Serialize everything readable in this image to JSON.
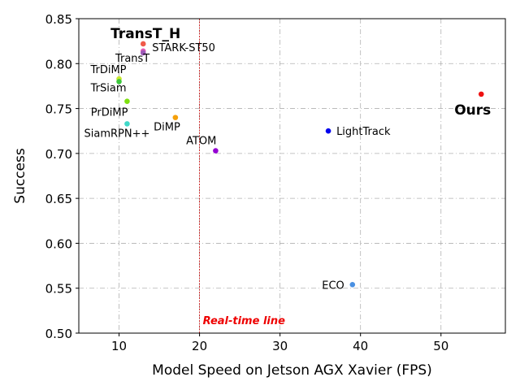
{
  "chart_data": {
    "type": "scatter",
    "xlabel": "Model Speed on Jetson AGX Xavier (FPS)",
    "ylabel": "Success",
    "xlim": [
      5,
      58
    ],
    "ylim": [
      0.5,
      0.85
    ],
    "xticks": [
      10,
      20,
      30,
      40,
      50
    ],
    "xtick_labels": [
      "10",
      "20",
      "30",
      "40",
      "50"
    ],
    "yticks": [
      0.5,
      0.55,
      0.6,
      0.65,
      0.7,
      0.75,
      0.8,
      0.85
    ],
    "ytick_labels": [
      "0.50",
      "0.55",
      "0.60",
      "0.65",
      "0.70",
      "0.75",
      "0.80",
      "0.85"
    ],
    "grid": true,
    "points": [
      {
        "label": "TransT_H",
        "x": 13,
        "y": 0.822,
        "color": "#f05a4a",
        "label_pos": "above-left",
        "bold": true
      },
      {
        "label": "STARK-ST50",
        "x": 13,
        "y": 0.814,
        "color": "#e45bb8",
        "label_pos": "right",
        "bold": false
      },
      {
        "label": "TransT",
        "x": 13,
        "y": 0.812,
        "color": "#9b59b6",
        "label_pos": "below-left",
        "bold": false
      },
      {
        "label": "TrDiMP",
        "x": 10,
        "y": 0.783,
        "color": "#c8e830",
        "label_pos": "above-left",
        "bold": false
      },
      {
        "label": "TrSiam",
        "x": 10,
        "y": 0.78,
        "color": "#3cc83c",
        "label_pos": "below-left",
        "bold": false
      },
      {
        "label": "PrDiMP",
        "x": 11,
        "y": 0.758,
        "color": "#7ee00f",
        "label_pos": "below-left",
        "bold": false
      },
      {
        "label": "SiamRPN++",
        "x": 11,
        "y": 0.733,
        "color": "#40d8c8",
        "label_pos": "below-left",
        "bold": false
      },
      {
        "label": "DiMP",
        "x": 17,
        "y": 0.74,
        "color": "#f5a00a",
        "label_pos": "below-left",
        "bold": false
      },
      {
        "label": "ATOM",
        "x": 22,
        "y": 0.703,
        "color": "#9400d3",
        "label_pos": "above-left",
        "bold": false
      },
      {
        "label": "LightTrack",
        "x": 36,
        "y": 0.725,
        "color": "#0000ee",
        "label_pos": "right",
        "bold": false
      },
      {
        "label": "Ours",
        "x": 55,
        "y": 0.766,
        "color": "#ee1111",
        "label_pos": "below-left",
        "bold": true
      },
      {
        "label": "ECO",
        "x": 39,
        "y": 0.554,
        "color": "#4a90e2",
        "label_pos": "left",
        "bold": false
      }
    ],
    "vline": {
      "x": 20,
      "color": "#cc0000",
      "label": "Real-time line",
      "label_color": "#ee0000"
    }
  }
}
